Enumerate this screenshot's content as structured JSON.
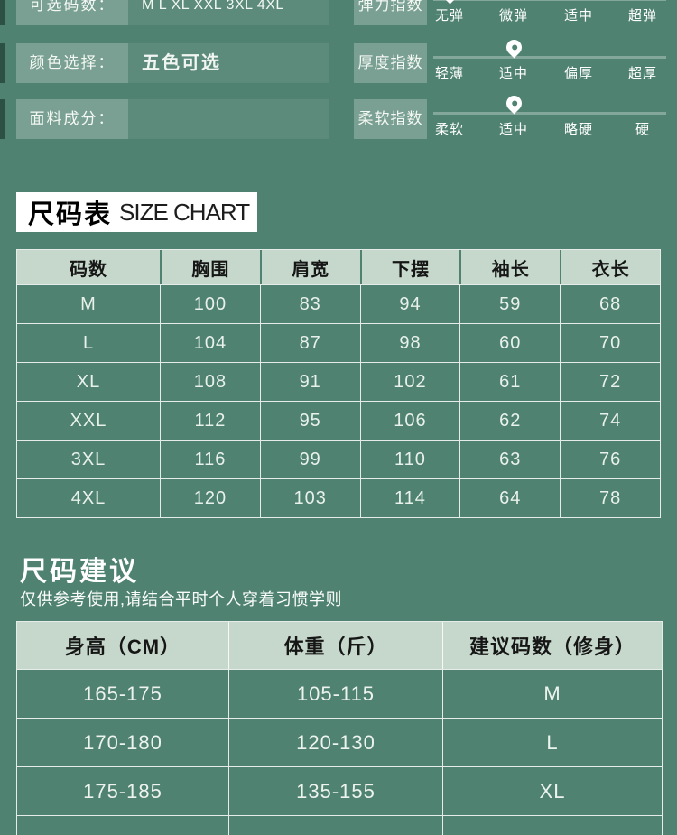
{
  "colors": {
    "background": "#4f8270",
    "accent_dark": "#2c5144",
    "table_header_bg": "#c5d8cb",
    "table_header_text": "#161616",
    "body_text": "#edf3ee",
    "title_box_bg": "#ffffff"
  },
  "specs": {
    "attributes": [
      {
        "label": "可选码数：",
        "value": "M L XL XXL 3XL 4XL",
        "emphasis": false
      },
      {
        "label": "颜色选择：",
        "value": "五色可选",
        "emphasis": true
      },
      {
        "label": "面料成分：",
        "value": "",
        "emphasis": false
      }
    ],
    "indexes": [
      {
        "label": "弹力指数",
        "levels": [
          "无弹",
          "微弹",
          "适中",
          "超弹"
        ],
        "selected_index": 0
      },
      {
        "label": "厚度指数",
        "levels": [
          "轻薄",
          "适中",
          "偏厚",
          "超厚"
        ],
        "selected_index": 1
      },
      {
        "label": "柔软指数",
        "levels": [
          "柔软",
          "适中",
          "略硬",
          "硬"
        ],
        "selected_index": 1
      }
    ],
    "marker_icon": "location-pin"
  },
  "size_chart": {
    "title_cn": "尺码表",
    "title_en": "SIZE CHART",
    "columns": [
      "码数",
      "胸围",
      "肩宽",
      "下摆",
      "袖长",
      "衣长"
    ],
    "rows": [
      [
        "M",
        "100",
        "83",
        "94",
        "59",
        "68"
      ],
      [
        "L",
        "104",
        "87",
        "98",
        "60",
        "70"
      ],
      [
        "XL",
        "108",
        "91",
        "102",
        "61",
        "72"
      ],
      [
        "XXL",
        "112",
        "95",
        "106",
        "62",
        "74"
      ],
      [
        "3XL",
        "116",
        "99",
        "110",
        "63",
        "76"
      ],
      [
        "4XL",
        "120",
        "103",
        "114",
        "64",
        "78"
      ]
    ]
  },
  "suggestion": {
    "title": "尺码建议",
    "note": "仅供参考使用,请结合平时个人穿着习惯学则",
    "columns": [
      "身高（CM）",
      "体重（斤）",
      "建议码数（修身）"
    ],
    "rows": [
      [
        "165-175",
        "105-115",
        "M"
      ],
      [
        "170-180",
        "120-130",
        "L"
      ],
      [
        "175-185",
        "135-155",
        "XL"
      ],
      [
        "",
        "",
        ""
      ]
    ]
  }
}
